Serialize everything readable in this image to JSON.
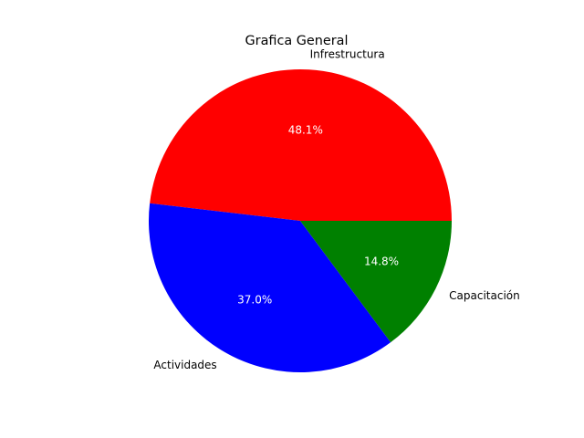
{
  "chart_data": {
    "type": "pie",
    "title": "Grafica General",
    "slices": [
      {
        "label": "Infrestructura",
        "percent": 48.1,
        "percent_label": "48.1%",
        "color": "#ff0000"
      },
      {
        "label": "Actividades",
        "percent": 37.0,
        "percent_label": "37.0%",
        "color": "#0000ff"
      },
      {
        "label": "Capacitación",
        "percent": 14.8,
        "percent_label": "14.8%",
        "color": "#008000"
      }
    ],
    "start_angle_deg": 0,
    "direction": "counterclockwise"
  }
}
